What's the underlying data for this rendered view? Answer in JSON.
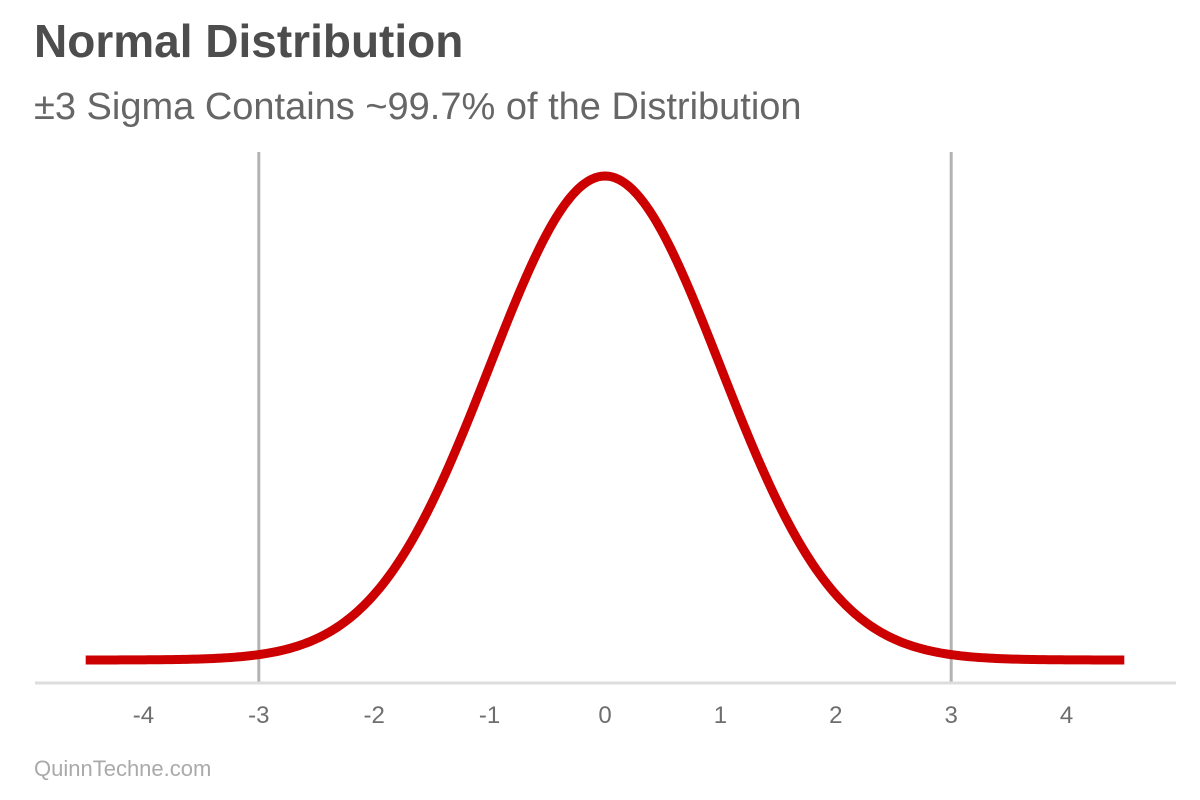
{
  "chart_data": {
    "type": "line",
    "title": "Normal Distribution",
    "subtitle": "±3 Sigma Contains ~99.7% of the Distribution",
    "xlabel": "",
    "ylabel": "",
    "xlim": [
      -4.5,
      4.5
    ],
    "x_ticks": [
      -4,
      -3,
      -2,
      -1,
      0,
      1,
      2,
      3,
      4
    ],
    "x_tick_labels": [
      "-4",
      "-3",
      "-2",
      "-1",
      "0",
      "1",
      "2",
      "3",
      "4"
    ],
    "grid": false,
    "reference_lines_x": [
      -3,
      3
    ],
    "series": [
      {
        "x": [
          -4.5,
          -4.0,
          -3.5,
          -3.0,
          -2.5,
          -2.0,
          -1.5,
          -1.0,
          -0.5,
          0.0,
          0.5,
          1.0,
          1.5,
          2.0,
          2.5,
          3.0,
          3.5,
          4.0,
          4.5
        ],
        "y": [
          1.6e-05,
          0.000134,
          0.000873,
          0.004432,
          0.017528,
          0.053991,
          0.129518,
          0.241971,
          0.352065,
          0.398942,
          0.352065,
          0.241971,
          0.129518,
          0.053991,
          0.017528,
          0.004432,
          0.000873,
          0.000134,
          1.6e-05
        ]
      }
    ]
  },
  "colors": {
    "curve": "#cc0000",
    "reference_line": "#b3b3b3",
    "axis": "#dddddd",
    "title": "#4d4d4d",
    "subtitle": "#666666",
    "tick": "#6e6e6e",
    "credit": "#aaaaaa"
  },
  "credit": "QuinnTechne.com"
}
